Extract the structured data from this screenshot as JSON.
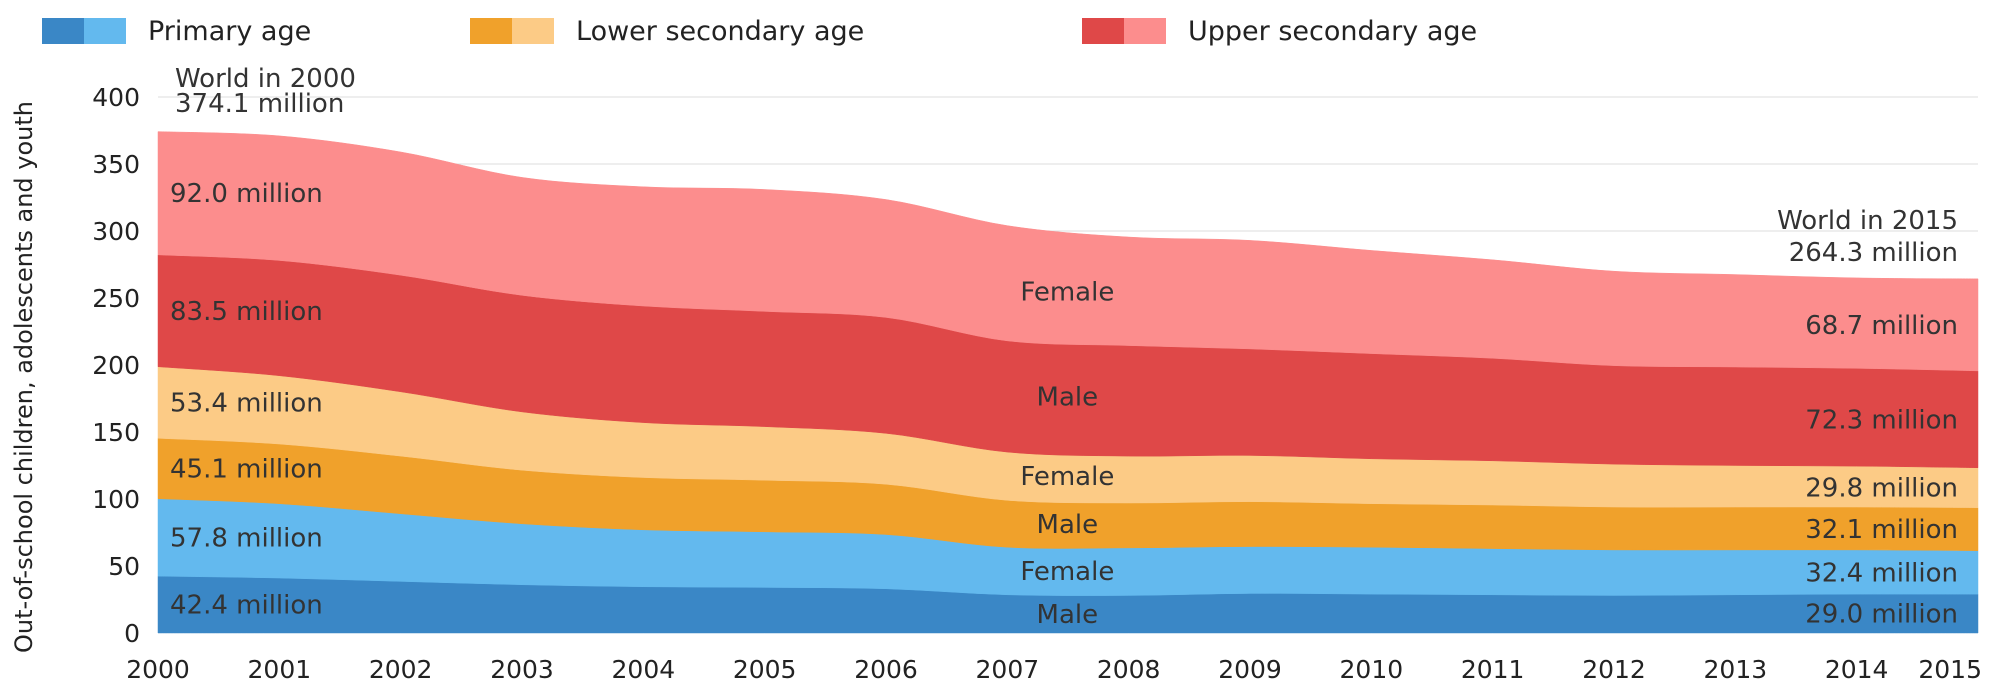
{
  "chart_data": {
    "type": "area",
    "stacked": true,
    "x": [
      2000,
      2001,
      2002,
      2003,
      2004,
      2005,
      2006,
      2007,
      2008,
      2009,
      2010,
      2011,
      2012,
      2013,
      2014,
      2015
    ],
    "ylabel": "Out-of-school children, adolescents and youth",
    "ylim": [
      0,
      400
    ],
    "yticks": [
      0,
      50,
      100,
      150,
      200,
      250,
      300,
      350,
      400
    ],
    "grid": "horizontal",
    "legend": [
      {
        "label": "Primary age",
        "colors": [
          "#3a87c6",
          "#63b9ee"
        ]
      },
      {
        "label": "Lower secondary age",
        "colors": [
          "#f0a12b",
          "#fccb86"
        ]
      },
      {
        "label": "Upper secondary age",
        "colors": [
          "#df4848",
          "#fc8d8d"
        ]
      }
    ],
    "legend_position": "top",
    "series": [
      {
        "name": "Primary age — Male",
        "color": "#3a87c6",
        "values": [
          42.4,
          41.0,
          38.5,
          36.0,
          34.5,
          34.0,
          33.0,
          28.5,
          28.0,
          29.5,
          29.0,
          28.5,
          28.0,
          28.5,
          29.0,
          29.0
        ]
      },
      {
        "name": "Primary age — Female",
        "color": "#63b9ee",
        "values": [
          57.8,
          55.5,
          50.5,
          45.5,
          42.5,
          41.5,
          40.5,
          35.5,
          35.5,
          35.0,
          35.0,
          34.5,
          34.0,
          33.5,
          33.0,
          32.4
        ]
      },
      {
        "name": "Lower secondary age — Male",
        "color": "#f0a12b",
        "values": [
          45.1,
          44.5,
          43.0,
          40.0,
          39.0,
          38.5,
          37.5,
          35.0,
          33.5,
          33.5,
          32.5,
          32.5,
          32.0,
          32.0,
          32.0,
          32.1
        ]
      },
      {
        "name": "Lower secondary age — Female",
        "color": "#fccb86",
        "values": [
          53.4,
          51.0,
          48.0,
          43.5,
          41.0,
          40.0,
          38.0,
          36.0,
          35.0,
          34.5,
          33.5,
          33.0,
          32.0,
          31.0,
          30.5,
          29.8
        ]
      },
      {
        "name": "Upper secondary age — Male",
        "color": "#df4848",
        "values": [
          83.5,
          86.0,
          87.0,
          87.0,
          87.0,
          86.0,
          86.5,
          83.0,
          82.5,
          79.5,
          78.5,
          76.5,
          73.5,
          73.5,
          73.0,
          72.3
        ]
      },
      {
        "name": "Upper secondary age — Female",
        "color": "#fc8d8d",
        "values": [
          92.0,
          93.0,
          92.0,
          88.0,
          89.0,
          91.0,
          88.0,
          86.0,
          81.0,
          81.0,
          77.0,
          73.5,
          70.5,
          69.0,
          67.5,
          68.7
        ]
      }
    ],
    "annotations": {
      "start_title": "World in 2000",
      "start_total": "374.1 million",
      "end_title": "World in 2015",
      "end_total": "264.3 million",
      "start_values": [
        "42.4 million",
        "57.8 million",
        "45.1 million",
        "53.4 million",
        "83.5 million",
        "92.0 million"
      ],
      "end_values": [
        "29.0 million",
        "32.4 million",
        "32.1 million",
        "29.8 million",
        "72.3 million",
        "68.7 million"
      ],
      "mid_labels": [
        "Male",
        "Female",
        "Male",
        "Female",
        "Male",
        "Female"
      ]
    }
  }
}
